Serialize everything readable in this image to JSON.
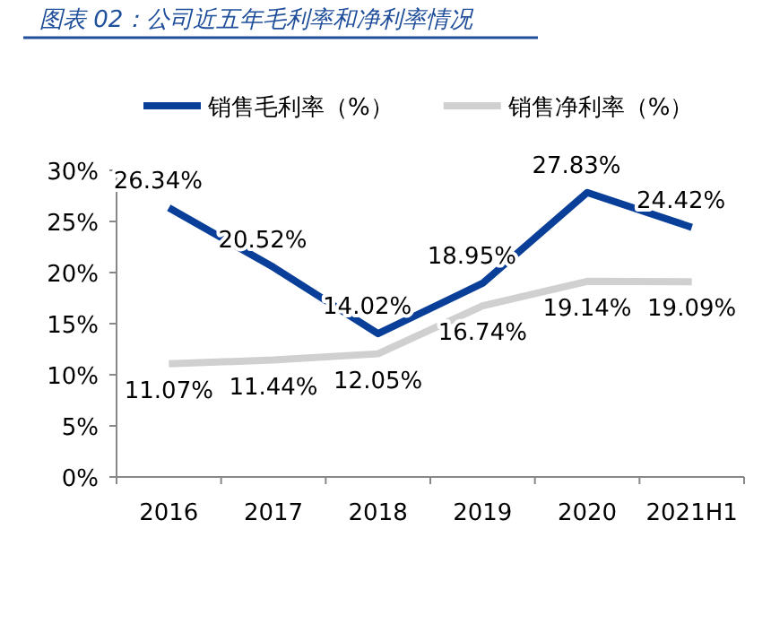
{
  "chart_data": {
    "type": "line",
    "title": "图表 02：公司近五年毛利率和净利率情况",
    "categories": [
      "2016",
      "2017",
      "2018",
      "2019",
      "2020",
      "2021H1"
    ],
    "series": [
      {
        "name": "销售毛利率（%）",
        "color": "#0a3f99",
        "values": [
          26.34,
          20.52,
          14.02,
          18.95,
          27.83,
          24.42
        ],
        "value_labels": [
          "26.34%",
          "20.52%",
          "14.02%",
          "18.95%",
          "27.83%",
          "24.42%"
        ]
      },
      {
        "name": "销售净利率（%）",
        "color": "#d0d0d0",
        "values": [
          11.07,
          11.44,
          12.05,
          16.74,
          19.14,
          19.09
        ],
        "value_labels": [
          "11.07%",
          "11.44%",
          "12.05%",
          "16.74%",
          "19.14%",
          "19.09%"
        ]
      }
    ],
    "ylim": [
      0,
      30
    ],
    "yticks": [
      {
        "value": 0,
        "label": "0%"
      },
      {
        "value": 5,
        "label": "5%"
      },
      {
        "value": 10,
        "label": "10%"
      },
      {
        "value": 15,
        "label": "15%"
      },
      {
        "value": 20,
        "label": "20%"
      },
      {
        "value": 25,
        "label": "25%"
      },
      {
        "value": 30,
        "label": "30%"
      }
    ],
    "legend": "top",
    "grid": false,
    "marker": "none",
    "line_style": "solid"
  }
}
